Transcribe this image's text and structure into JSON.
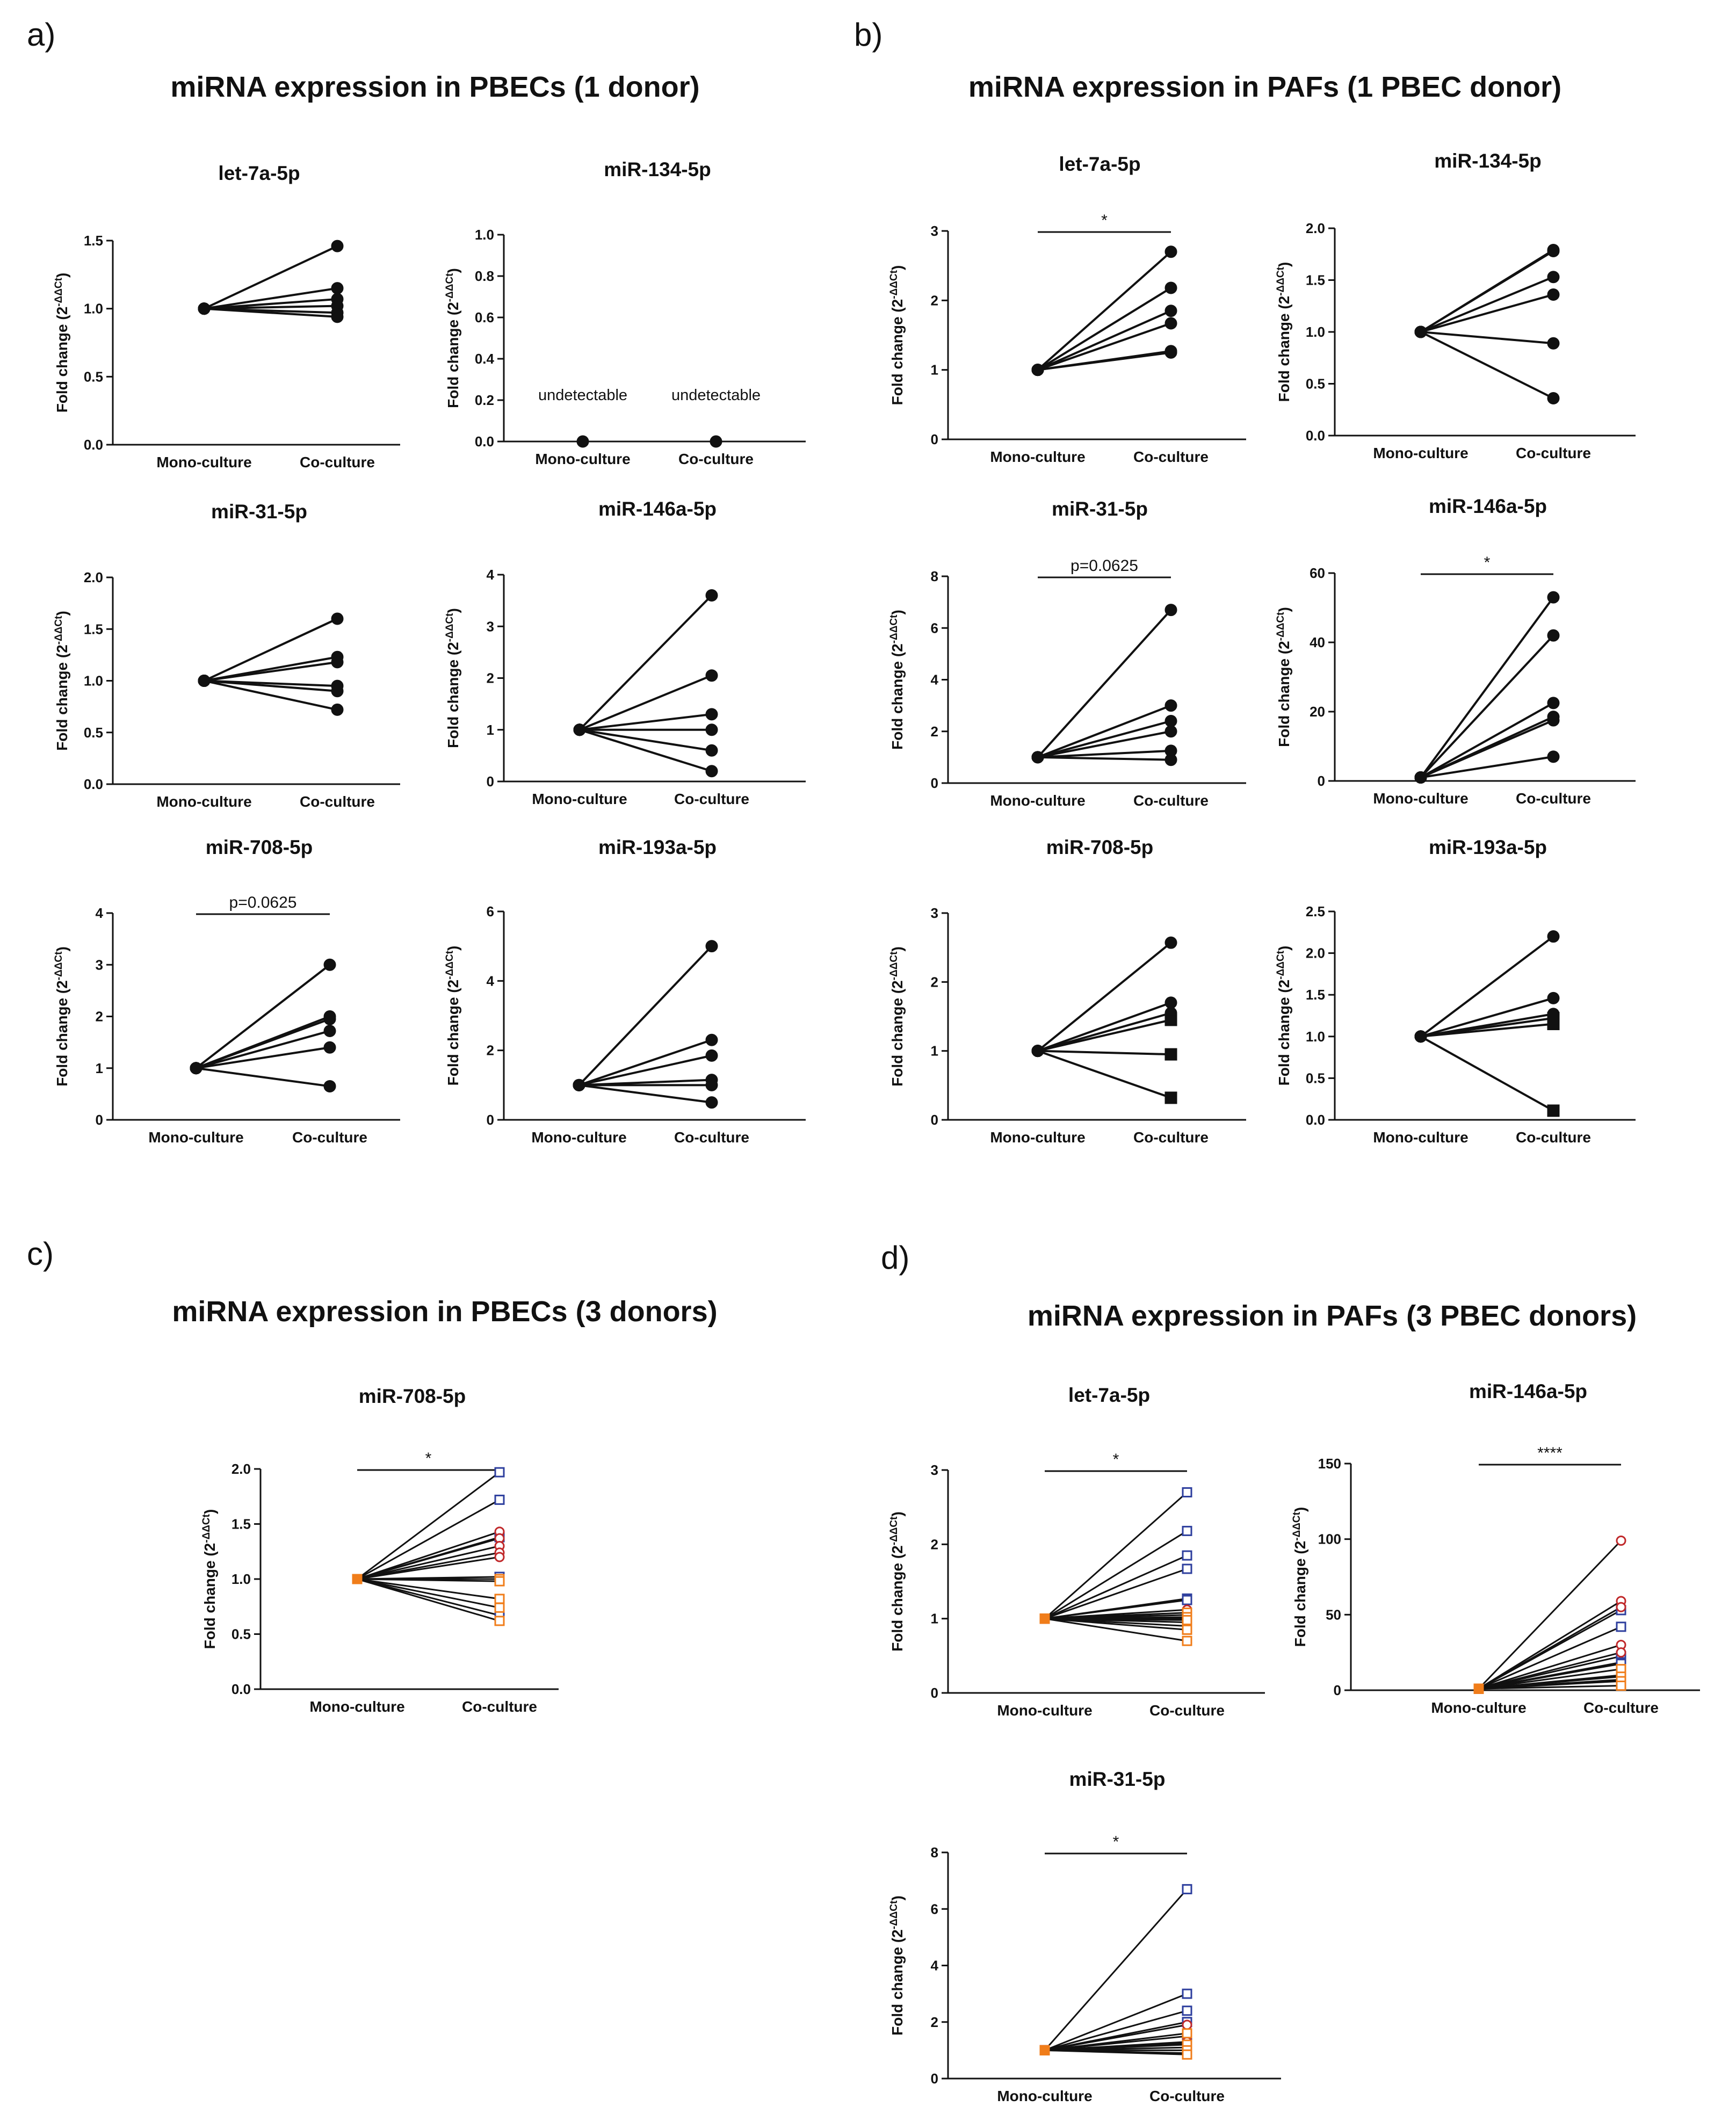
{
  "figure": {
    "x_categories": [
      "Mono-culture",
      "Co-culture"
    ],
    "y_axis_label_prefix": "Fold change (2",
    "y_axis_label_exponent": "-ΔΔCt",
    "y_axis_label_suffix": ")"
  },
  "panels": [
    {
      "label": "a)",
      "title": "miRNA expression in PBECs (1 donor)"
    },
    {
      "label": "b)",
      "title": "miRNA expression in PAFs (1  PBEC donor)"
    },
    {
      "label": "c)",
      "title": "miRNA expression in PBECs (3 donors)"
    },
    {
      "label": "d)",
      "title": "miRNA expression in PAFs (3 PBEC donors)"
    }
  ],
  "colors": {
    "line": "#111111",
    "black_marker": "#111111",
    "donor1": "#2e3f9e",
    "donor2": "#c0282a",
    "donor3": "#f07d1a"
  },
  "chart_data": [
    {
      "panel": "a",
      "type": "line",
      "title": "let-7a-5p",
      "categories": [
        "Mono-culture",
        "Co-culture"
      ],
      "ylim": [
        0,
        1.5
      ],
      "yticks": [
        "0.0",
        "0.5",
        "1.0",
        "1.5"
      ],
      "series_values": [
        [
          1,
          1.46
        ],
        [
          1,
          1.15
        ],
        [
          1,
          1.07
        ],
        [
          1,
          1.02
        ],
        [
          1,
          0.97
        ],
        [
          1,
          0.94
        ]
      ],
      "marker": "circle"
    },
    {
      "panel": "a",
      "type": "line",
      "title": "miR-134-5p",
      "categories": [
        "Mono-culture",
        "Co-culture"
      ],
      "ylim": [
        0,
        1.0
      ],
      "yticks": [
        "0.0",
        "0.2",
        "0.4",
        "0.6",
        "0.8",
        "1.0"
      ],
      "series_values": [
        [
          0,
          0
        ]
      ],
      "marker": "circle",
      "annotations": [
        "undetectable",
        "undetectable"
      ]
    },
    {
      "panel": "a",
      "type": "line",
      "title": "miR-31-5p",
      "categories": [
        "Mono-culture",
        "Co-culture"
      ],
      "ylim": [
        0,
        2.0
      ],
      "yticks": [
        "0.0",
        "0.5",
        "1.0",
        "1.5",
        "2.0"
      ],
      "series_values": [
        [
          1,
          1.6
        ],
        [
          1,
          1.23
        ],
        [
          1,
          1.18
        ],
        [
          1,
          0.95
        ],
        [
          1,
          0.9
        ],
        [
          1,
          0.72
        ]
      ],
      "marker": "circle"
    },
    {
      "panel": "a",
      "type": "line",
      "title": "miR-146a-5p",
      "categories": [
        "Mono-culture",
        "Co-culture"
      ],
      "ylim": [
        0,
        4
      ],
      "yticks": [
        "0",
        "1",
        "2",
        "3",
        "4"
      ],
      "series_values": [
        [
          1,
          3.6
        ],
        [
          1,
          2.05
        ],
        [
          1,
          1.3
        ],
        [
          1,
          1.0
        ],
        [
          1,
          0.6
        ],
        [
          1,
          0.2
        ]
      ],
      "marker": "circle"
    },
    {
      "panel": "a",
      "type": "line",
      "title": "miR-708-5p",
      "categories": [
        "Mono-culture",
        "Co-culture"
      ],
      "ylim": [
        0,
        4
      ],
      "yticks": [
        "0",
        "1",
        "2",
        "3",
        "4"
      ],
      "series_values": [
        [
          1,
          3.0
        ],
        [
          1,
          2.0
        ],
        [
          1,
          1.95
        ],
        [
          1,
          1.72
        ],
        [
          1,
          1.4
        ],
        [
          1,
          0.65
        ]
      ],
      "marker": "circle",
      "significance": "p=0.0625"
    },
    {
      "panel": "a",
      "type": "line",
      "title": "miR-193a-5p",
      "categories": [
        "Mono-culture",
        "Co-culture"
      ],
      "ylim": [
        0,
        6
      ],
      "yticks": [
        "0",
        "2",
        "4",
        "6"
      ],
      "series_values": [
        [
          1,
          5.0
        ],
        [
          1,
          2.3
        ],
        [
          1,
          1.85
        ],
        [
          1,
          1.15
        ],
        [
          1,
          1.0
        ],
        [
          1,
          0.5
        ]
      ],
      "marker": "circle"
    },
    {
      "panel": "b",
      "type": "line",
      "title": "let-7a-5p",
      "categories": [
        "Mono-culture",
        "Co-culture"
      ],
      "ylim": [
        0,
        3
      ],
      "yticks": [
        "0",
        "1",
        "2",
        "3"
      ],
      "series_values": [
        [
          1,
          2.7
        ],
        [
          1,
          2.18
        ],
        [
          1,
          1.85
        ],
        [
          1,
          1.67
        ],
        [
          1,
          1.27
        ],
        [
          1,
          1.25
        ]
      ],
      "marker": "circle",
      "significance": "*"
    },
    {
      "panel": "b",
      "type": "line",
      "title": "miR-134-5p",
      "categories": [
        "Mono-culture",
        "Co-culture"
      ],
      "ylim": [
        0,
        2.0
      ],
      "yticks": [
        "0.0",
        "0.5",
        "1.0",
        "1.5",
        "2.0"
      ],
      "series_values": [
        [
          1,
          1.79
        ],
        [
          1,
          1.78
        ],
        [
          1,
          1.53
        ],
        [
          1,
          1.36
        ],
        [
          1,
          0.89
        ],
        [
          1,
          0.36
        ]
      ],
      "marker": "circle"
    },
    {
      "panel": "b",
      "type": "line",
      "title": "miR-31-5p",
      "categories": [
        "Mono-culture",
        "Co-culture"
      ],
      "ylim": [
        0,
        8
      ],
      "yticks": [
        "0",
        "2",
        "4",
        "6",
        "8"
      ],
      "series_values": [
        [
          1,
          6.7
        ],
        [
          1,
          3.0
        ],
        [
          1,
          2.4
        ],
        [
          1,
          2.0
        ],
        [
          1,
          1.25
        ],
        [
          1,
          0.9
        ]
      ],
      "marker": "circle",
      "significance": "p=0.0625"
    },
    {
      "panel": "b",
      "type": "line",
      "title": "miR-146a-5p",
      "categories": [
        "Mono-culture",
        "Co-culture"
      ],
      "ylim": [
        0,
        60
      ],
      "yticks": [
        "0",
        "20",
        "40",
        "60"
      ],
      "series_values": [
        [
          1,
          53
        ],
        [
          1,
          42
        ],
        [
          1,
          22.5
        ],
        [
          1,
          18.5
        ],
        [
          1,
          17.5
        ],
        [
          1,
          7
        ]
      ],
      "marker": "circle",
      "significance": "*"
    },
    {
      "panel": "b",
      "type": "line",
      "title": "miR-708-5p",
      "categories": [
        "Mono-culture",
        "Co-culture"
      ],
      "ylim": [
        0,
        3
      ],
      "yticks": [
        "0",
        "1",
        "2",
        "3"
      ],
      "series_values": [
        [
          1,
          2.57
        ],
        [
          1,
          1.7
        ],
        [
          1,
          1.55
        ],
        [
          1,
          1.45
        ],
        [
          1,
          0.95
        ],
        [
          1,
          0.32
        ]
      ],
      "marker": "mixed"
    },
    {
      "panel": "b",
      "type": "line",
      "title": "miR-193a-5p",
      "categories": [
        "Mono-culture",
        "Co-culture"
      ],
      "ylim": [
        0,
        2.5
      ],
      "yticks": [
        "0.0",
        "0.5",
        "1.0",
        "1.5",
        "2.0",
        "2.5"
      ],
      "series_values": [
        [
          1,
          2.2
        ],
        [
          1,
          1.46
        ],
        [
          1,
          1.27
        ],
        [
          1,
          1.22
        ],
        [
          1,
          1.15
        ],
        [
          1,
          0.11
        ]
      ],
      "marker": "mixed"
    },
    {
      "panel": "c",
      "type": "line",
      "title": "miR-708-5p",
      "categories": [
        "Mono-culture",
        "Co-culture"
      ],
      "ylim": [
        0,
        2.0
      ],
      "yticks": [
        "0.0",
        "0.5",
        "1.0",
        "1.5",
        "2.0"
      ],
      "series": [
        {
          "name": "donor1",
          "values": [
            [
              1,
              1.97
            ],
            [
              1,
              1.72
            ],
            [
              1,
              1.38
            ],
            [
              1,
              1.02
            ],
            [
              1,
              0.67
            ]
          ]
        },
        {
          "name": "donor2",
          "values": [
            [
              1,
              1.43
            ],
            [
              1,
              1.37
            ],
            [
              1,
              1.3
            ],
            [
              1,
              1.24
            ],
            [
              1,
              1.2
            ]
          ]
        },
        {
          "name": "donor3",
          "values": [
            [
              1,
              1.0
            ],
            [
              1,
              0.98
            ],
            [
              1,
              0.82
            ],
            [
              1,
              0.74
            ],
            [
              1,
              0.62
            ]
          ]
        }
      ],
      "significance": "*"
    },
    {
      "panel": "d",
      "type": "line",
      "title": "let-7a-5p",
      "categories": [
        "Mono-culture",
        "Co-culture"
      ],
      "ylim": [
        0,
        3
      ],
      "yticks": [
        "0",
        "1",
        "2",
        "3"
      ],
      "series": [
        {
          "name": "donor1",
          "values": [
            [
              1,
              2.7
            ],
            [
              1,
              2.18
            ],
            [
              1,
              1.85
            ],
            [
              1,
              1.67
            ],
            [
              1,
              1.27
            ],
            [
              1,
              1.25
            ]
          ]
        },
        {
          "name": "donor2",
          "values": [
            [
              1,
              1.12
            ],
            [
              1,
              1.05
            ],
            [
              1,
              1.0
            ],
            [
              1,
              0.95
            ],
            [
              1,
              0.9
            ]
          ]
        },
        {
          "name": "donor3",
          "values": [
            [
              1,
              1.08
            ],
            [
              1,
              1.02
            ],
            [
              1,
              0.98
            ],
            [
              1,
              0.85
            ],
            [
              1,
              0.7
            ]
          ]
        }
      ],
      "significance": "*"
    },
    {
      "panel": "d",
      "type": "line",
      "title": "miR-146a-5p",
      "categories": [
        "Mono-culture",
        "Co-culture"
      ],
      "ylim": [
        0,
        150
      ],
      "yticks": [
        "0",
        "50",
        "100",
        "150"
      ],
      "series": [
        {
          "name": "donor1",
          "values": [
            [
              1,
              53
            ],
            [
              1,
              42
            ],
            [
              1,
              22.5
            ],
            [
              1,
              18.5
            ],
            [
              1,
              17.5
            ],
            [
              1,
              7
            ]
          ]
        },
        {
          "name": "donor2",
          "values": [
            [
              1,
              99
            ],
            [
              1,
              59
            ],
            [
              1,
              55
            ],
            [
              1,
              30
            ],
            [
              1,
              25
            ],
            [
              1,
              10
            ]
          ]
        },
        {
          "name": "donor3",
          "values": [
            [
              1,
              14
            ],
            [
              1,
              9
            ],
            [
              1,
              6
            ],
            [
              1,
              3
            ]
          ]
        }
      ],
      "significance": "****"
    },
    {
      "panel": "d",
      "type": "line",
      "title": "miR-31-5p",
      "categories": [
        "Mono-culture",
        "Co-culture"
      ],
      "ylim": [
        0,
        8
      ],
      "yticks": [
        "0",
        "2",
        "4",
        "6",
        "8"
      ],
      "series": [
        {
          "name": "donor1",
          "values": [
            [
              1,
              6.7
            ],
            [
              1,
              3.0
            ],
            [
              1,
              2.4
            ],
            [
              1,
              2.0
            ],
            [
              1,
              1.25
            ],
            [
              1,
              0.9
            ]
          ]
        },
        {
          "name": "donor2",
          "values": [
            [
              1,
              1.9
            ],
            [
              1,
              1.5
            ],
            [
              1,
              1.3
            ],
            [
              1,
              1.1
            ]
          ]
        },
        {
          "name": "donor3",
          "values": [
            [
              1,
              1.6
            ],
            [
              1,
              1.2
            ],
            [
              1,
              1.0
            ],
            [
              1,
              0.85
            ]
          ]
        }
      ],
      "significance": "*"
    }
  ]
}
